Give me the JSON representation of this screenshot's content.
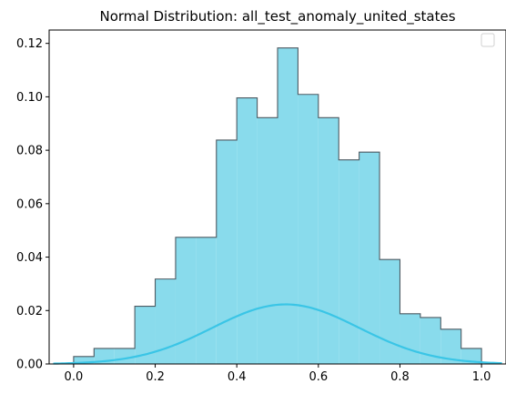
{
  "chart_data": {
    "type": "histogram",
    "title": "Normal Distribution: all_test_anomaly_united_states",
    "xlabel": "",
    "ylabel": "",
    "xlim": [
      -0.06,
      1.06
    ],
    "ylim": [
      0,
      0.125
    ],
    "grid": false,
    "legend": {
      "entries": [],
      "placement": "top-right"
    },
    "x_ticks": [
      "0.0",
      "0.2",
      "0.4",
      "0.6",
      "0.8",
      "1.0"
    ],
    "y_ticks": [
      "0.00",
      "0.02",
      "0.04",
      "0.06",
      "0.08",
      "0.10",
      "0.12"
    ],
    "colors": {
      "fill": "#89dbec",
      "edge": "#4d5a62",
      "curve": "#3ac5e6",
      "axes": "#000000"
    },
    "histogram": {
      "bin_edges": [
        0.0,
        0.05,
        0.1,
        0.15,
        0.2,
        0.25,
        0.3,
        0.35,
        0.4,
        0.45,
        0.5,
        0.55,
        0.6,
        0.65,
        0.7,
        0.75,
        0.8,
        0.85,
        0.9,
        0.95,
        1.0
      ],
      "values": [
        0.0028,
        0.0058,
        0.0058,
        0.0216,
        0.0318,
        0.0474,
        0.0474,
        0.0838,
        0.0996,
        0.0922,
        0.1183,
        0.1009,
        0.0922,
        0.0764,
        0.0793,
        0.0391,
        0.0188,
        0.0174,
        0.013,
        0.0058
      ]
    },
    "normal_curve": {
      "mean": 0.52,
      "sigma": 0.18,
      "peak": 0.0223,
      "x_range": [
        -0.05,
        1.05
      ]
    }
  }
}
